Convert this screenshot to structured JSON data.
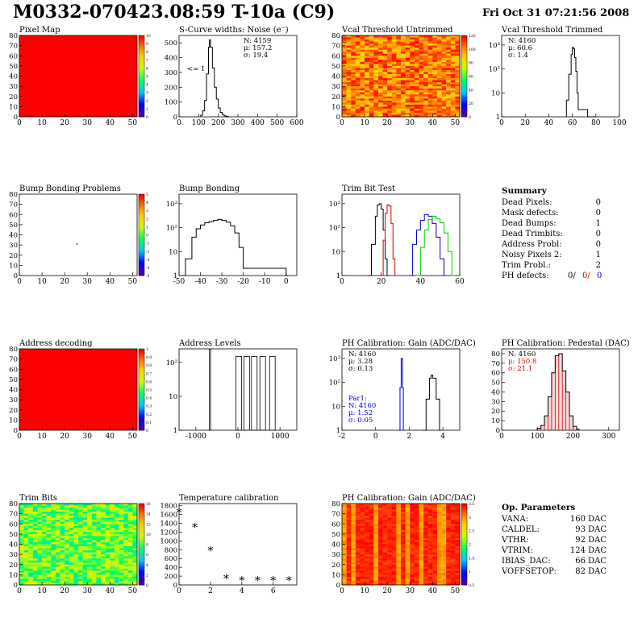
{
  "header": {
    "title": "M0332-070423.08:59 T-10a (C9)",
    "date": "Fri Oct 31 07:21:56 2008"
  },
  "panels": [
    {
      "id": "pixel-map",
      "kind": "map",
      "title": "Pixel Map",
      "fill": "#ff0000",
      "xticks": [
        "0",
        "10",
        "20",
        "30",
        "40",
        "50"
      ],
      "yticks": [
        "0",
        "10",
        "20",
        "30",
        "40",
        "50",
        "60",
        "70",
        "80"
      ],
      "zticks": [
        "0",
        "1",
        "2",
        "3",
        "4",
        "5",
        "6",
        "7",
        "8",
        "9",
        "10"
      ]
    },
    {
      "id": "scurve",
      "kind": "hist",
      "title": "S-Curve widths: Noise (e⁻)",
      "xticks": [
        "0",
        "100",
        "200",
        "300",
        "400",
        "500",
        "600"
      ],
      "yticks": [
        "0",
        "100",
        "200",
        "300",
        "400",
        "500"
      ],
      "stats": [
        "N: 4159",
        "μ: 157.2",
        "σ: 19.4"
      ],
      "annotation": "<= 1"
    },
    {
      "id": "vcal-untrimmed",
      "kind": "noise",
      "title": "Vcal Threshold Untrimmed",
      "xticks": [
        "0",
        "10",
        "20",
        "30",
        "40",
        "50"
      ],
      "yticks": [
        "0",
        "10",
        "20",
        "30",
        "40",
        "50",
        "60",
        "70",
        "80"
      ],
      "zticks": [
        "0",
        "20",
        "40",
        "60",
        "80",
        "100",
        "120"
      ]
    },
    {
      "id": "vcal-trimmed",
      "kind": "hist",
      "title": "Vcal Threshold Trimmed",
      "xticks": [
        "0",
        "20",
        "40",
        "60",
        "80",
        "100"
      ],
      "yticks": [
        "1",
        "10",
        "10²",
        "10³"
      ],
      "stats": [
        "N: 4160",
        "μ: 60.6",
        "σ:  1.4"
      ]
    },
    {
      "id": "bump-problems",
      "kind": "map",
      "title": "Bump Bonding Problems",
      "fill": "#ffffff",
      "xticks": [
        "0",
        "10",
        "20",
        "30",
        "40",
        "50"
      ],
      "yticks": [
        "0",
        "10",
        "20",
        "30",
        "40",
        "50",
        "60",
        "70",
        "80"
      ],
      "zticks": [
        "-5",
        "-4",
        "-3",
        "-2",
        "-1",
        "0",
        "1",
        "2",
        "3",
        "4",
        "5"
      ]
    },
    {
      "id": "bump-bonding",
      "kind": "hist",
      "title": "Bump Bonding",
      "xticks": [
        "-50",
        "-40",
        "-30",
        "-20",
        "-10",
        "0"
      ],
      "yticks": [
        "1",
        "10",
        "10²",
        "10³"
      ]
    },
    {
      "id": "trim-bit",
      "kind": "hist",
      "title": "Trim Bit Test",
      "xticks": [
        "0",
        "20",
        "40",
        "60"
      ],
      "yticks": [
        "1",
        "10",
        "10²",
        "10³"
      ]
    },
    {
      "id": "address-decoding",
      "kind": "map",
      "title": "Address decoding",
      "fill": "#ff0000",
      "xticks": [
        "0",
        "10",
        "20",
        "30",
        "40",
        "50"
      ],
      "yticks": [
        "0",
        "10",
        "20",
        "30",
        "40",
        "50",
        "60",
        "70",
        "80"
      ],
      "zticks": [
        "0",
        "0.1",
        "0.2",
        "0.3",
        "0.4",
        "0.5",
        "0.6",
        "0.7",
        "0.8",
        "0.9",
        "1"
      ]
    },
    {
      "id": "address-levels",
      "kind": "hist",
      "title": "Address Levels",
      "xticks": [
        "-1000",
        "0",
        "1000"
      ],
      "yticks": [
        "1",
        "10",
        "10²"
      ]
    },
    {
      "id": "ph-gain",
      "kind": "hist",
      "title": "PH Calibration: Gain (ADC/DAC)",
      "xticks": [
        "-2",
        "0",
        "2",
        "4"
      ],
      "yticks": [
        "1",
        "10",
        "10²",
        "10³"
      ],
      "stats": [
        "N: 4160",
        "μ: 3.28",
        "σ: 0.13"
      ],
      "par": [
        "Par1:",
        "N: 4160",
        "μ: 1.52",
        "σ: 0.05"
      ]
    },
    {
      "id": "ph-pedestal",
      "kind": "hist",
      "title": "PH Calibration: Pedestal (DAC)",
      "xticks": [
        "0",
        "100",
        "200",
        "300"
      ],
      "yticks": [
        "0",
        "10",
        "20",
        "30",
        "40",
        "50",
        "60",
        "70",
        "80"
      ],
      "stats": [
        "N: 4160",
        "μ: 150.8",
        "σ: 21.1"
      ]
    },
    {
      "id": "trim-bits",
      "kind": "noise",
      "title": "Trim Bits",
      "xticks": [
        "0",
        "10",
        "20",
        "30",
        "40",
        "50"
      ],
      "yticks": [
        "0",
        "10",
        "20",
        "30",
        "40",
        "50",
        "60",
        "70",
        "80"
      ],
      "zticks": [
        "0",
        "2",
        "4",
        "6",
        "8",
        "10",
        "12",
        "14",
        "16"
      ]
    },
    {
      "id": "temperature",
      "kind": "scatter",
      "title": "Temperature calibration",
      "xticks": [
        "0",
        "2",
        "4",
        "6"
      ],
      "yticks": [
        "0",
        "200",
        "400",
        "600",
        "800",
        "1000",
        "1200",
        "1400",
        "1600",
        "1800"
      ]
    },
    {
      "id": "ph-gain-map",
      "kind": "noise",
      "title": "PH Calibration: Gain (ADC/DAC)",
      "xticks": [
        "0",
        "10",
        "20",
        "30",
        "40",
        "50"
      ],
      "yticks": [
        "0",
        "10",
        "20",
        "30",
        "40",
        "50",
        "60",
        "70",
        "80"
      ],
      "zticks": [
        "0.5",
        "1",
        "1.5",
        "2",
        "2.5",
        "3",
        "3.5"
      ]
    }
  ],
  "summary": {
    "title": "Summary",
    "rows": [
      {
        "label": "Dead Pixels:",
        "value": "0"
      },
      {
        "label": "Mask defects:",
        "value": "0"
      },
      {
        "label": "Dead Bumps:",
        "value": "1"
      },
      {
        "label": "Dead Trimbits:",
        "value": "0"
      },
      {
        "label": "Address Probl:",
        "value": "0"
      },
      {
        "label": "Noisy Pixels 2:",
        "value": "1"
      },
      {
        "label": "Trim Probl.:",
        "value": "2"
      }
    ],
    "ph_label": "PH defects:",
    "ph_values": [
      {
        "v": "0/",
        "color": "#000000"
      },
      {
        "v": "0/",
        "color": "#cc0000"
      },
      {
        "v": "0",
        "color": "#0000cc"
      }
    ]
  },
  "op_params": {
    "title": "Op. Parameters",
    "rows": [
      {
        "label": "VANA:",
        "value": "160 DAC"
      },
      {
        "label": "CALDEL:",
        "value": "93 DAC"
      },
      {
        "label": "VTHR:",
        "value": "92 DAC"
      },
      {
        "label": "VTRIM:",
        "value": "124 DAC"
      },
      {
        "label": "IBIAS_DAC:",
        "value": "66 DAC"
      },
      {
        "label": "VOFFSETOP:",
        "value": "82 DAC"
      }
    ]
  },
  "chart_data": [
    {
      "type": "heatmap",
      "title": "Pixel Map",
      "x_range": [
        0,
        52
      ],
      "y_range": [
        0,
        80
      ],
      "z_range": [
        0,
        10
      ],
      "uniform_value": 10
    },
    {
      "type": "bar",
      "title": "S-Curve widths: Noise (e⁻)",
      "x_range": [
        0,
        600
      ],
      "y_range": [
        0,
        550
      ],
      "bins": [
        [
          110,
          10
        ],
        [
          120,
          40
        ],
        [
          130,
          110
        ],
        [
          140,
          290
        ],
        [
          150,
          470
        ],
        [
          155,
          520
        ],
        [
          160,
          470
        ],
        [
          170,
          330
        ],
        [
          180,
          200
        ],
        [
          190,
          120
        ],
        [
          200,
          60
        ],
        [
          210,
          30
        ],
        [
          220,
          15
        ],
        [
          230,
          6
        ],
        [
          240,
          2
        ]
      ]
    },
    {
      "type": "heatmap",
      "title": "Vcal Threshold Untrimmed",
      "x_range": [
        0,
        52
      ],
      "y_range": [
        0,
        80
      ],
      "z_range": [
        0,
        130
      ]
    },
    {
      "type": "bar",
      "title": "Vcal Threshold Trimmed",
      "x_range": [
        0,
        100
      ],
      "y_scale": "log",
      "bins": [
        [
          55,
          5
        ],
        [
          57,
          60
        ],
        [
          59,
          400
        ],
        [
          60,
          800
        ],
        [
          61,
          700
        ],
        [
          62,
          300
        ],
        [
          63,
          80
        ],
        [
          64,
          10
        ],
        [
          65,
          2
        ],
        [
          73,
          1
        ],
        [
          78,
          1
        ]
      ]
    },
    {
      "type": "heatmap",
      "title": "Bump Bonding Problems",
      "x_range": [
        0,
        52
      ],
      "y_range": [
        0,
        80
      ],
      "z_range": [
        -5,
        5
      ],
      "points": [
        {
          "x": 25,
          "y": 31
        }
      ]
    },
    {
      "type": "bar",
      "title": "Bump Bonding",
      "x_range": [
        -50,
        5
      ],
      "y_scale": "log",
      "bins": [
        [
          -49,
          1
        ],
        [
          -47,
          5
        ],
        [
          -44,
          40
        ],
        [
          -42,
          90
        ],
        [
          -40,
          130
        ],
        [
          -38,
          160
        ],
        [
          -36,
          180
        ],
        [
          -34,
          200
        ],
        [
          -32,
          220
        ],
        [
          -30,
          200
        ],
        [
          -28,
          170
        ],
        [
          -26,
          120
        ],
        [
          -24,
          60
        ],
        [
          -22,
          15
        ],
        [
          -20,
          2
        ],
        [
          0,
          1
        ]
      ]
    },
    {
      "type": "line",
      "title": "Trim Bit Test",
      "x_range": [
        0,
        60
      ],
      "y_scale": "log",
      "series": [
        {
          "color": "#000000",
          "points": [
            [
              13,
              1
            ],
            [
              15,
              20
            ],
            [
              17,
              300
            ],
            [
              18,
              900
            ],
            [
              19,
              1000
            ],
            [
              20,
              600
            ],
            [
              21,
              80
            ],
            [
              22,
              5
            ],
            [
              23,
              1
            ]
          ]
        },
        {
          "color": "#cc0000",
          "points": [
            [
              20,
              1
            ],
            [
              21,
              30
            ],
            [
              22,
              400
            ],
            [
              23,
              900
            ],
            [
              24,
              800
            ],
            [
              25,
              150
            ],
            [
              26,
              5
            ],
            [
              27,
              1
            ]
          ]
        },
        {
          "color": "#0000cc",
          "points": [
            [
              34,
              1
            ],
            [
              36,
              20
            ],
            [
              38,
              80
            ],
            [
              40,
              200
            ],
            [
              42,
              350
            ],
            [
              44,
              300
            ],
            [
              46,
              150
            ],
            [
              48,
              40
            ],
            [
              50,
              5
            ],
            [
              52,
              1
            ]
          ]
        },
        {
          "color": "#00cc00",
          "points": [
            [
              38,
              1
            ],
            [
              40,
              15
            ],
            [
              42,
              80
            ],
            [
              44,
              220
            ],
            [
              46,
              300
            ],
            [
              48,
              240
            ],
            [
              50,
              160
            ],
            [
              52,
              60
            ],
            [
              54,
              10
            ],
            [
              56,
              1
            ]
          ]
        }
      ]
    },
    {
      "type": "heatmap",
      "title": "Address decoding",
      "x_range": [
        0,
        52
      ],
      "y_range": [
        0,
        80
      ],
      "z_range": [
        0,
        1
      ],
      "uniform_value": 1
    },
    {
      "type": "bar",
      "title": "Address Levels",
      "x_range": [
        -1400,
        1400
      ],
      "y_scale": "log",
      "peaks": [
        -640,
        -10,
        180,
        360,
        560,
        790
      ]
    },
    {
      "type": "line",
      "title": "PH Calibration: Gain (ADC/DAC)",
      "x_range": [
        -2,
        5
      ],
      "y_scale": "log",
      "series": [
        {
          "color": "#000000",
          "name": "Gain",
          "points": [
            [
              2.8,
              1
            ],
            [
              3.0,
              20
            ],
            [
              3.2,
              150
            ],
            [
              3.3,
              200
            ],
            [
              3.4,
              150
            ],
            [
              3.6,
              20
            ],
            [
              3.8,
              1
            ]
          ]
        },
        {
          "color": "#0000cc",
          "name": "Par1",
          "points": [
            [
              1.4,
              1
            ],
            [
              1.45,
              60
            ],
            [
              1.52,
              1000
            ],
            [
              1.6,
              60
            ],
            [
              1.65,
              1
            ]
          ]
        }
      ]
    },
    {
      "type": "bar",
      "title": "PH Calibration: Pedestal (DAC)",
      "x_range": [
        0,
        330
      ],
      "y_range": [
        0,
        85
      ],
      "bins": [
        [
          100,
          2
        ],
        [
          110,
          5
        ],
        [
          120,
          15
        ],
        [
          130,
          35
        ],
        [
          140,
          60
        ],
        [
          150,
          78
        ],
        [
          160,
          80
        ],
        [
          170,
          62
        ],
        [
          180,
          40
        ],
        [
          190,
          15
        ],
        [
          200,
          4
        ],
        [
          210,
          1
        ]
      ]
    },
    {
      "type": "heatmap",
      "title": "Trim Bits",
      "x_range": [
        0,
        52
      ],
      "y_range": [
        0,
        80
      ],
      "z_range": [
        0,
        16
      ]
    },
    {
      "type": "scatter",
      "title": "Temperature calibration",
      "x_range": [
        0,
        7.5
      ],
      "y_range": [
        0,
        1850
      ],
      "x": [
        0,
        1,
        2,
        3,
        4,
        5,
        6,
        7
      ],
      "y": [
        1650,
        1310,
        780,
        150,
        100,
        100,
        100,
        100
      ]
    },
    {
      "type": "heatmap",
      "title": "PH Calibration: Gain (ADC/DAC)",
      "x_range": [
        0,
        52
      ],
      "y_range": [
        0,
        80
      ],
      "z_range": [
        0.3,
        3.6
      ]
    }
  ]
}
